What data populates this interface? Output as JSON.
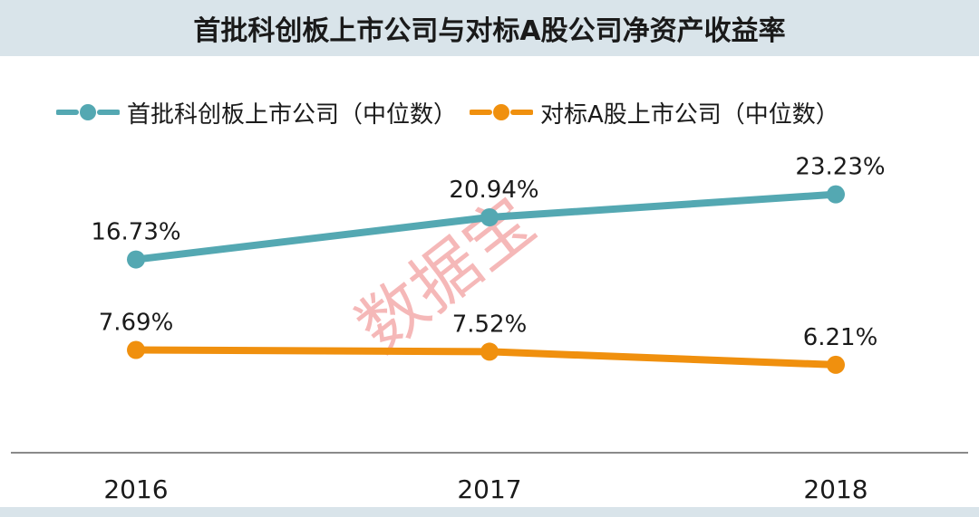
{
  "title": "首批科创板上市公司与对标A股公司净资产收益率",
  "watermark": "数据宝",
  "colors": {
    "teal": "#54a8b2",
    "orange": "#f0900e",
    "band": "#d9e4ea"
  },
  "chart_data": {
    "type": "line",
    "categories": [
      "2016",
      "2017",
      "2018"
    ],
    "series": [
      {
        "name": "首批科创板上市公司（中位数）",
        "values": [
          16.73,
          20.94,
          23.23
        ],
        "labels": [
          "16.73%",
          "20.94%",
          "23.23%"
        ],
        "color": "#54a8b2"
      },
      {
        "name": "对标A股上市公司（中位数）",
        "values": [
          7.69,
          7.52,
          6.21
        ],
        "labels": [
          "7.69%",
          "7.52%",
          "6.21%"
        ],
        "color": "#f0900e"
      }
    ],
    "legend_position": "top-left",
    "grid": false
  }
}
